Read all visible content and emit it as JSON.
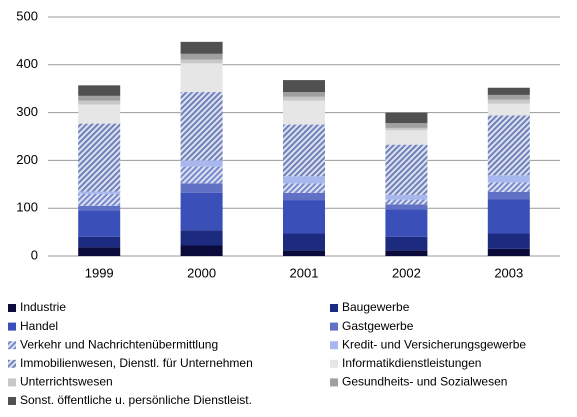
{
  "chart_data": {
    "type": "stacked_bar",
    "categories": [
      "1999",
      "2000",
      "2001",
      "2002",
      "2003"
    ],
    "ylim": [
      0,
      500
    ],
    "yticks": [
      0,
      100,
      200,
      300,
      400,
      500
    ],
    "grid": true,
    "legend": "bottom",
    "series": [
      {
        "name": "Industrie",
        "color": "#0b0b3b",
        "values": [
          18,
          22,
          12,
          12,
          15
        ]
      },
      {
        "name": "Baugewerbe",
        "color": "#1c2a80",
        "values": [
          22,
          32,
          35,
          28,
          32
        ]
      },
      {
        "name": "Handel",
        "color": "#3a50b8",
        "values": [
          55,
          78,
          70,
          58,
          72
        ]
      },
      {
        "name": "Gastgewerbe",
        "color": "#6070c4",
        "values": [
          10,
          20,
          15,
          10,
          15
        ]
      },
      {
        "name": "Verkehr und Nachrichtenübermittlung",
        "color": "#7888cc",
        "pattern": "hatch",
        "values": [
          25,
          35,
          20,
          10,
          20
        ]
      },
      {
        "name": "Kredit- und Versicherungsgewerbe",
        "color": "#a8b8ee",
        "values": [
          5,
          13,
          15,
          10,
          15
        ]
      },
      {
        "name": "Immobilienwesen, Dienstl. für Unternehmen",
        "color": "#7080b8",
        "pattern": "hatch",
        "values": [
          142,
          143,
          108,
          105,
          125
        ]
      },
      {
        "name": "Informatikdienstleistungen",
        "color": "#e6e6e6",
        "values": [
          40,
          60,
          50,
          30,
          25
        ]
      },
      {
        "name": "Unterrichtswesen",
        "color": "#c8c8c8",
        "values": [
          8,
          8,
          8,
          5,
          8
        ]
      },
      {
        "name": "Gesundheits- und Sozialwesen",
        "color": "#a0a0a0",
        "values": [
          10,
          12,
          10,
          10,
          10
        ]
      },
      {
        "name": "Sonst. öffentliche u. persönliche Dienstleist.",
        "color": "#505050",
        "values": [
          22,
          25,
          25,
          22,
          15
        ]
      }
    ]
  }
}
